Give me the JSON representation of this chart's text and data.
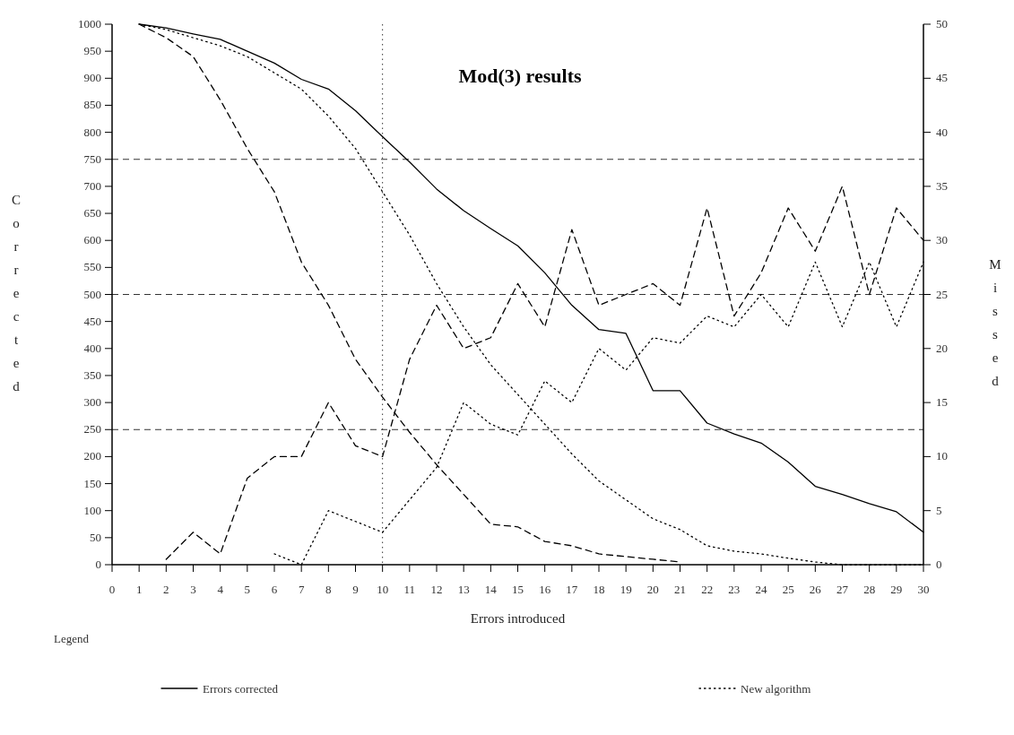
{
  "chart_data": {
    "type": "line",
    "title": "Mod(3) results",
    "xlabel": "Errors introduced",
    "ylabel": "Corrected",
    "y2label": "Missed",
    "legend_title": "Legend",
    "x": [
      1,
      2,
      3,
      4,
      5,
      6,
      7,
      8,
      9,
      10,
      11,
      12,
      13,
      14,
      15,
      16,
      17,
      18,
      19,
      20,
      21,
      22,
      23,
      24,
      25,
      26,
      27,
      28,
      29,
      30
    ],
    "xlim": [
      0,
      30
    ],
    "xticks": [
      0,
      1,
      2,
      3,
      4,
      5,
      6,
      7,
      8,
      9,
      10,
      11,
      12,
      13,
      14,
      15,
      16,
      17,
      18,
      19,
      20,
      21,
      22,
      23,
      24,
      25,
      26,
      27,
      28,
      29,
      30
    ],
    "ylim": [
      0,
      1000
    ],
    "yticks": [
      0,
      50,
      100,
      150,
      200,
      250,
      300,
      350,
      400,
      450,
      500,
      550,
      600,
      650,
      700,
      750,
      800,
      850,
      900,
      950,
      1000
    ],
    "y2lim": [
      0,
      50
    ],
    "y2ticks": [
      0,
      5,
      10,
      15,
      20,
      25,
      30,
      35,
      40,
      45,
      50
    ],
    "series": [
      {
        "name": "Errors corrected",
        "color": "#000000",
        "line_style": "solid",
        "values": [
          1000,
          993,
          982,
          972,
          950,
          928,
          898,
          880,
          840,
          792,
          745,
          695,
          655,
          622,
          590,
          540,
          480,
          435,
          428,
          322,
          322,
          262,
          242,
          225,
          190,
          145,
          130,
          113,
          98,
          60
        ]
      },
      {
        "name": "New algorithm",
        "color": "#000000",
        "line_style": "dotted",
        "values": [
          1000,
          990,
          975,
          960,
          940,
          910,
          880,
          830,
          770,
          690,
          610,
          520,
          440,
          370,
          315,
          260,
          205,
          155,
          120,
          85,
          65,
          35,
          25,
          20,
          12,
          5,
          0,
          0,
          0,
          0
        ]
      },
      {
        "color": "#000000",
        "line_style": "dashed",
        "values": [
          1000,
          975,
          940,
          860,
          770,
          690,
          560,
          480,
          380,
          310,
          245,
          185,
          130,
          75,
          70,
          43,
          35,
          20,
          15,
          10,
          5,
          null,
          null,
          null,
          null,
          null,
          null,
          null,
          null,
          null
        ]
      },
      {
        "color": "#000000",
        "line_style": "dashed",
        "axis": "y2",
        "values": [
          null,
          0.5,
          3,
          1,
          8,
          10,
          10,
          15,
          11,
          10,
          19,
          24,
          20,
          21,
          26,
          22,
          31,
          24,
          25,
          26,
          24,
          33,
          23,
          27,
          33,
          29,
          35,
          25,
          33,
          30
        ]
      },
      {
        "color": "#000000",
        "line_style": "dotted",
        "axis": "y2",
        "values": [
          null,
          null,
          null,
          null,
          null,
          1,
          0,
          5,
          4,
          3,
          6,
          9,
          15,
          13,
          12,
          17,
          15,
          20,
          18,
          21,
          20.5,
          23,
          22,
          25,
          22,
          28,
          22,
          28,
          22,
          28
        ]
      }
    ],
    "ref_lines": [
      {
        "axis": "y",
        "value": 750,
        "line_style": "dashed"
      },
      {
        "axis": "y",
        "value": 500,
        "line_style": "dashed"
      },
      {
        "axis": "y",
        "value": 250,
        "line_style": "dashed"
      },
      {
        "axis": "x",
        "value": 10,
        "line_style": "dotted"
      }
    ],
    "legend": "bottom left",
    "grid": false
  }
}
